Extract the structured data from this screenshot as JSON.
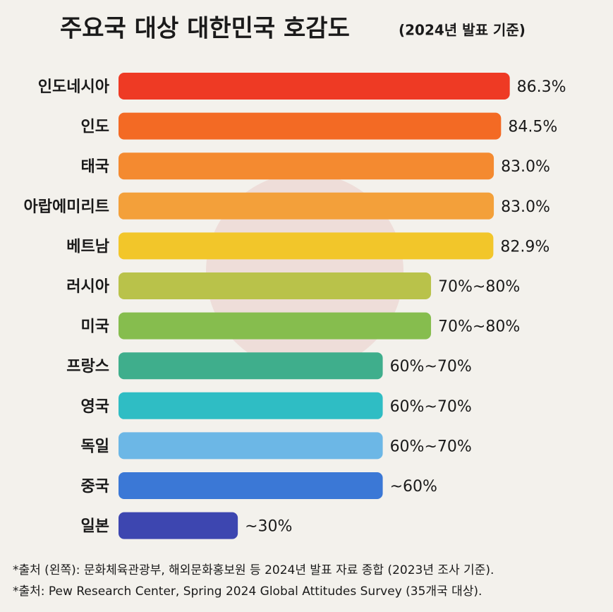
{
  "chart_data": {
    "type": "bar",
    "orientation": "horizontal",
    "title": "주요국 대상 대한민국 호감도",
    "subtitle": "(2024년 발표 기준)",
    "categories": [
      "인도네시아",
      "인도",
      "태국",
      "아랍에미리트",
      "베트남",
      "러시아",
      "미국",
      "프랑스",
      "영국",
      "독일",
      "중국",
      "일본"
    ],
    "values": [
      86.3,
      84.5,
      83.0,
      83.0,
      82.9,
      70,
      70,
      60,
      60,
      60,
      60,
      30
    ],
    "value_labels": [
      "86.3%",
      "84.5%",
      "83.0%",
      "83.0%",
      "82.9%",
      "70%~80%",
      "70%~80%",
      "60%~70%",
      "60%~70%",
      "60%~70%",
      "~60%",
      "~30%"
    ],
    "colors": [
      "#ee3a24",
      "#f36a24",
      "#f48a30",
      "#f3a03a",
      "#f2c62a",
      "#b9c24a",
      "#86bd4e",
      "#3fae8c",
      "#2fbdc4",
      "#6cb7e6",
      "#3b78d6",
      "#3d46b0"
    ],
    "xlim": [
      5.3,
      90
    ],
    "notes": [
      "*출처 (왼쪽): 문화체육관광부, 해외문화홍보원 등 2024년 발표 자료 종합 (2023년 조사 기준).",
      "*출처: Pew Research Center, Spring 2024 Global Attitudes Survey (35개국 대상)."
    ]
  }
}
